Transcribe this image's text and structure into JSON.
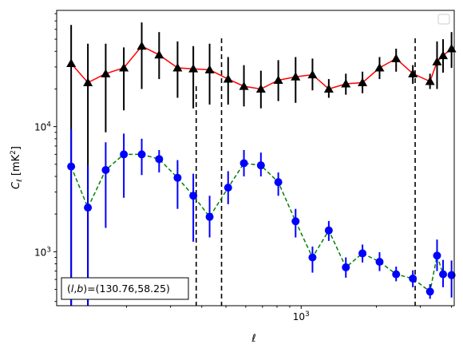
{
  "chart_data": {
    "type": "scatter",
    "xscale": "log",
    "yscale": "log",
    "xlim": [
      105,
      4100
    ],
    "ylim": [
      370,
      85000
    ],
    "xlabel": "ℓ",
    "ylabel": "C_ℓ  [mK²]",
    "x_tick_labels": [
      {
        "value": 1000,
        "base": "10",
        "exp": "3"
      }
    ],
    "y_tick_labels": [
      {
        "value": 1000,
        "base": "10",
        "exp": "3"
      },
      {
        "value": 10000,
        "base": "10",
        "exp": "4"
      }
    ],
    "legend": {
      "location": "upper right",
      "entries": []
    },
    "annotation": "(l, b)=(130.76,58.25)",
    "vlines": [
      380,
      480,
      2860
    ],
    "x": [
      120,
      140,
      165,
      195,
      230,
      270,
      320,
      370,
      430,
      510,
      590,
      690,
      810,
      950,
      1110,
      1290,
      1510,
      1760,
      2060,
      2400,
      2800,
      3280,
      3820
    ],
    "series": [
      {
        "name": "",
        "marker": "triangle",
        "line": "solid",
        "line_color": "#ff0000",
        "marker_color": "#000000",
        "y": [
          32000,
          22500,
          26500,
          29500,
          44000,
          37500,
          29500,
          29000,
          28500,
          24000,
          21000,
          20000,
          23500,
          25000,
          26000,
          20000,
          22000,
          22500,
          29500,
          35000,
          26500,
          23000,
          33000,
          37000,
          42000
        ],
        "x_full": [
          120,
          140,
          165,
          195,
          230,
          270,
          320,
          370,
          430,
          510,
          590,
          690,
          810,
          950,
          1110,
          1290,
          1510,
          1760,
          2060,
          2400,
          2800,
          3280,
          3500,
          3700,
          4000
        ],
        "err_lo": [
          370,
          370,
          9000,
          13500,
          20000,
          24000,
          17000,
          14000,
          15000,
          15000,
          14500,
          14000,
          16000,
          15500,
          19500,
          17000,
          18000,
          18500,
          24000,
          27500,
          22000,
          20000,
          20000,
          27000,
          29500
        ],
        "err_hi": [
          65000,
          46000,
          46000,
          43000,
          68000,
          57000,
          48000,
          44000,
          46000,
          36000,
          31000,
          28000,
          34000,
          36000,
          35000,
          24000,
          26500,
          27500,
          36000,
          42000,
          31000,
          26500,
          48000,
          50000,
          57000
        ]
      },
      {
        "name": "",
        "marker": "circle",
        "line": "dashed",
        "line_color": "#008000",
        "marker_color": "#0000ff",
        "x_full": [
          120,
          140,
          165,
          195,
          230,
          270,
          320,
          370,
          430,
          510,
          590,
          690,
          810,
          950,
          1110,
          1290,
          1510,
          1760,
          2060,
          2400,
          2800,
          3280,
          3500,
          3700,
          4000
        ],
        "y": [
          4800,
          2250,
          4500,
          6000,
          6000,
          5500,
          3900,
          2800,
          1900,
          3250,
          5100,
          4900,
          3600,
          1750,
          900,
          1480,
          750,
          970,
          830,
          660,
          610,
          480,
          930,
          660,
          650
        ],
        "err_lo": [
          370,
          370,
          1550,
          2700,
          4100,
          4300,
          2200,
          1200,
          1300,
          2400,
          4000,
          4000,
          2800,
          1300,
          680,
          1220,
          620,
          820,
          700,
          580,
          520,
          420,
          700,
          520,
          430
        ],
        "err_hi": [
          9500,
          4900,
          7500,
          8800,
          8000,
          6500,
          5400,
          4200,
          2800,
          4400,
          6500,
          6200,
          4300,
          2200,
          1100,
          1760,
          900,
          1140,
          990,
          760,
          710,
          550,
          1250,
          860,
          850
        ]
      }
    ]
  }
}
